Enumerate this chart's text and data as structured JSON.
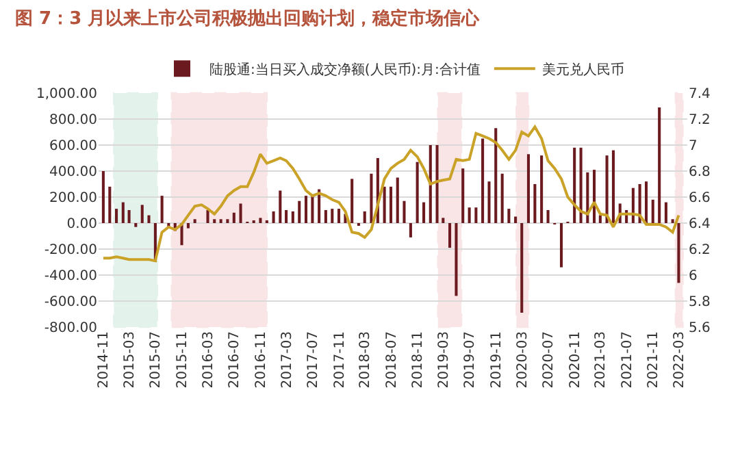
{
  "chart_data": {
    "type": "bar",
    "title": "图 7：3 月以来上市公司积极抛出回购计划，稳定市场信心",
    "x": [
      "2014-11",
      "2014-12",
      "2015-01",
      "2015-02",
      "2015-03",
      "2015-04",
      "2015-05",
      "2015-06",
      "2015-07",
      "2015-08",
      "2015-09",
      "2015-10",
      "2015-11",
      "2015-12",
      "2016-01",
      "2016-02",
      "2016-03",
      "2016-04",
      "2016-05",
      "2016-06",
      "2016-07",
      "2016-08",
      "2016-09",
      "2016-10",
      "2016-11",
      "2016-12",
      "2017-01",
      "2017-02",
      "2017-03",
      "2017-04",
      "2017-05",
      "2017-06",
      "2017-07",
      "2017-08",
      "2017-09",
      "2017-10",
      "2017-11",
      "2017-12",
      "2018-01",
      "2018-02",
      "2018-03",
      "2018-04",
      "2018-05",
      "2018-06",
      "2018-07",
      "2018-08",
      "2018-09",
      "2018-10",
      "2018-11",
      "2018-12",
      "2019-01",
      "2019-02",
      "2019-03",
      "2019-04",
      "2019-05",
      "2019-06",
      "2019-07",
      "2019-08",
      "2019-09",
      "2019-10",
      "2019-11",
      "2019-12",
      "2020-01",
      "2020-02",
      "2020-03",
      "2020-04",
      "2020-05",
      "2020-06",
      "2020-07",
      "2020-08",
      "2020-09",
      "2020-10",
      "2020-11",
      "2020-12",
      "2021-01",
      "2021-02",
      "2021-03",
      "2021-04",
      "2021-05",
      "2021-06",
      "2021-07",
      "2021-08",
      "2021-09",
      "2021-10",
      "2021-11",
      "2021-12",
      "2022-01",
      "2022-02",
      "2022-03"
    ],
    "series": [
      {
        "name": "陆股通:当日买入成交净额(人民币):月:合计值",
        "color": "#6b1a1f",
        "values": [
          400,
          280,
          110,
          160,
          100,
          -30,
          140,
          60,
          -300,
          210,
          -40,
          -60,
          -170,
          -40,
          30,
          0,
          100,
          30,
          30,
          30,
          80,
          150,
          10,
          20,
          40,
          20,
          90,
          250,
          100,
          90,
          170,
          210,
          210,
          260,
          100,
          110,
          110,
          70,
          340,
          -20,
          90,
          380,
          500,
          280,
          280,
          350,
          170,
          -110,
          470,
          160,
          600,
          600,
          40,
          -190,
          -560,
          420,
          120,
          120,
          650,
          320,
          730,
          380,
          110,
          50,
          -690,
          530,
          300,
          520,
          100,
          -10,
          -340,
          10,
          580,
          580,
          390,
          410,
          60,
          520,
          560,
          150,
          100,
          270,
          300,
          320,
          180,
          890,
          160,
          30,
          -460
        ]
      },
      {
        "name": "美元兑人民币",
        "type": "line",
        "axis": "y2",
        "color": "#c9a227",
        "values": [
          6.13,
          6.13,
          6.14,
          6.13,
          6.12,
          6.12,
          6.12,
          6.12,
          6.11,
          6.33,
          6.37,
          6.35,
          6.39,
          6.46,
          6.53,
          6.54,
          6.51,
          6.47,
          6.53,
          6.61,
          6.65,
          6.68,
          6.68,
          6.79,
          6.93,
          6.86,
          6.88,
          6.9,
          6.88,
          6.82,
          6.74,
          6.65,
          6.61,
          6.63,
          6.61,
          6.58,
          6.56,
          6.49,
          6.33,
          6.32,
          6.29,
          6.35,
          6.54,
          6.74,
          6.82,
          6.86,
          6.89,
          6.96,
          6.91,
          6.82,
          6.7,
          6.72,
          6.73,
          6.74,
          6.89,
          6.88,
          6.89,
          7.09,
          7.07,
          7.05,
          7.02,
          6.96,
          6.89,
          6.96,
          7.1,
          7.07,
          7.14,
          7.05,
          6.88,
          6.82,
          6.74,
          6.6,
          6.54,
          6.49,
          6.47,
          6.56,
          6.47,
          6.46,
          6.37,
          6.47,
          6.47,
          6.47,
          6.46,
          6.39,
          6.39,
          6.39,
          6.37,
          6.33,
          6.46
        ]
      }
    ],
    "xlim": [
      "2014-10-10",
      "2022-04-10"
    ],
    "xticks": [
      "2014-11",
      "2015-03",
      "2015-07",
      "2015-11",
      "2016-03",
      "2016-07",
      "2016-11",
      "2017-03",
      "2017-07",
      "2017-11",
      "2018-03",
      "2018-07",
      "2018-11",
      "2019-03",
      "2019-07",
      "2019-11",
      "2020-03",
      "2020-07",
      "2020-11",
      "2021-03",
      "2021-07",
      "2021-11",
      "2022-03"
    ],
    "ylim": [
      -800,
      1000
    ],
    "yticks": [
      {
        "value": -800,
        "label": "-800.00"
      },
      {
        "value": -600,
        "label": "-600.00"
      },
      {
        "value": -400,
        "label": "-400.00"
      },
      {
        "value": -200,
        "label": "-200.00"
      },
      {
        "value": 0,
        "label": "0.00"
      },
      {
        "value": 200,
        "label": "200.00"
      },
      {
        "value": 400,
        "label": "400.00"
      },
      {
        "value": 600,
        "label": "600.00"
      },
      {
        "value": 800,
        "label": "800.00"
      },
      {
        "value": 1000,
        "label": "1,000.00"
      }
    ],
    "y2lim": [
      5.6,
      7.4
    ],
    "y2ticks": [
      5.6,
      5.8,
      6,
      6.2,
      6.4,
      6.6,
      6.8,
      7,
      7.2,
      7.4
    ],
    "bands": [
      {
        "axis": "x",
        "from": "2014-12-20",
        "to": "2015-07-10",
        "color": "#2e9e6e"
      },
      {
        "axis": "x",
        "from": "2015-09-15",
        "to": "2016-12-01",
        "color": "#d0283a"
      },
      {
        "axis": "x",
        "from": "2019-02-05",
        "to": "2019-05-25",
        "color": "#d0283a"
      },
      {
        "axis": "x",
        "from": "2020-02-05",
        "to": "2020-04-01",
        "color": "#d0283a"
      },
      {
        "axis": "x",
        "from": "2022-02-15",
        "to": "2022-03-20",
        "color": "#d0283a"
      }
    ],
    "grid": "y",
    "legend": "top"
  }
}
